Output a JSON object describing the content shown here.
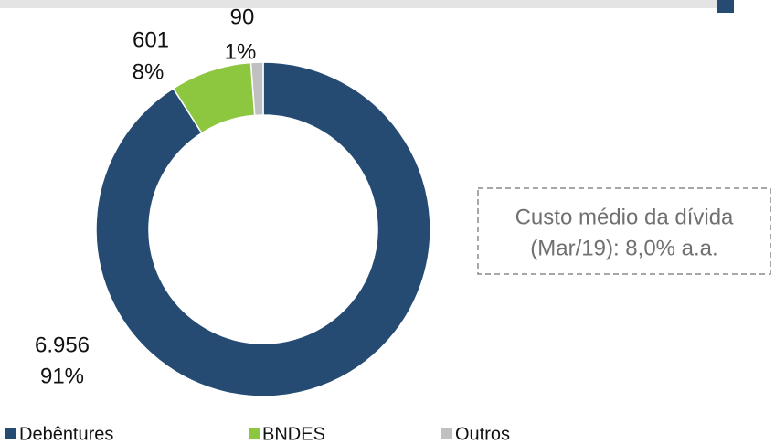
{
  "chart_data": {
    "type": "donut",
    "categories": [
      "Debêntures",
      "BNDES",
      "Outros"
    ],
    "values": [
      6956,
      601,
      90
    ],
    "value_labels": [
      "6.956",
      "601",
      "90"
    ],
    "percentages": [
      91,
      8,
      1
    ],
    "percentage_labels": [
      "91%",
      "8%",
      "1%"
    ],
    "colors": [
      "#264b73",
      "#8dc63f",
      "#c0c0c0"
    ],
    "annotation": [
      "Custo médio da dívida",
      "(Mar/19): 8,0% a.a."
    ],
    "legend": "bottom"
  }
}
